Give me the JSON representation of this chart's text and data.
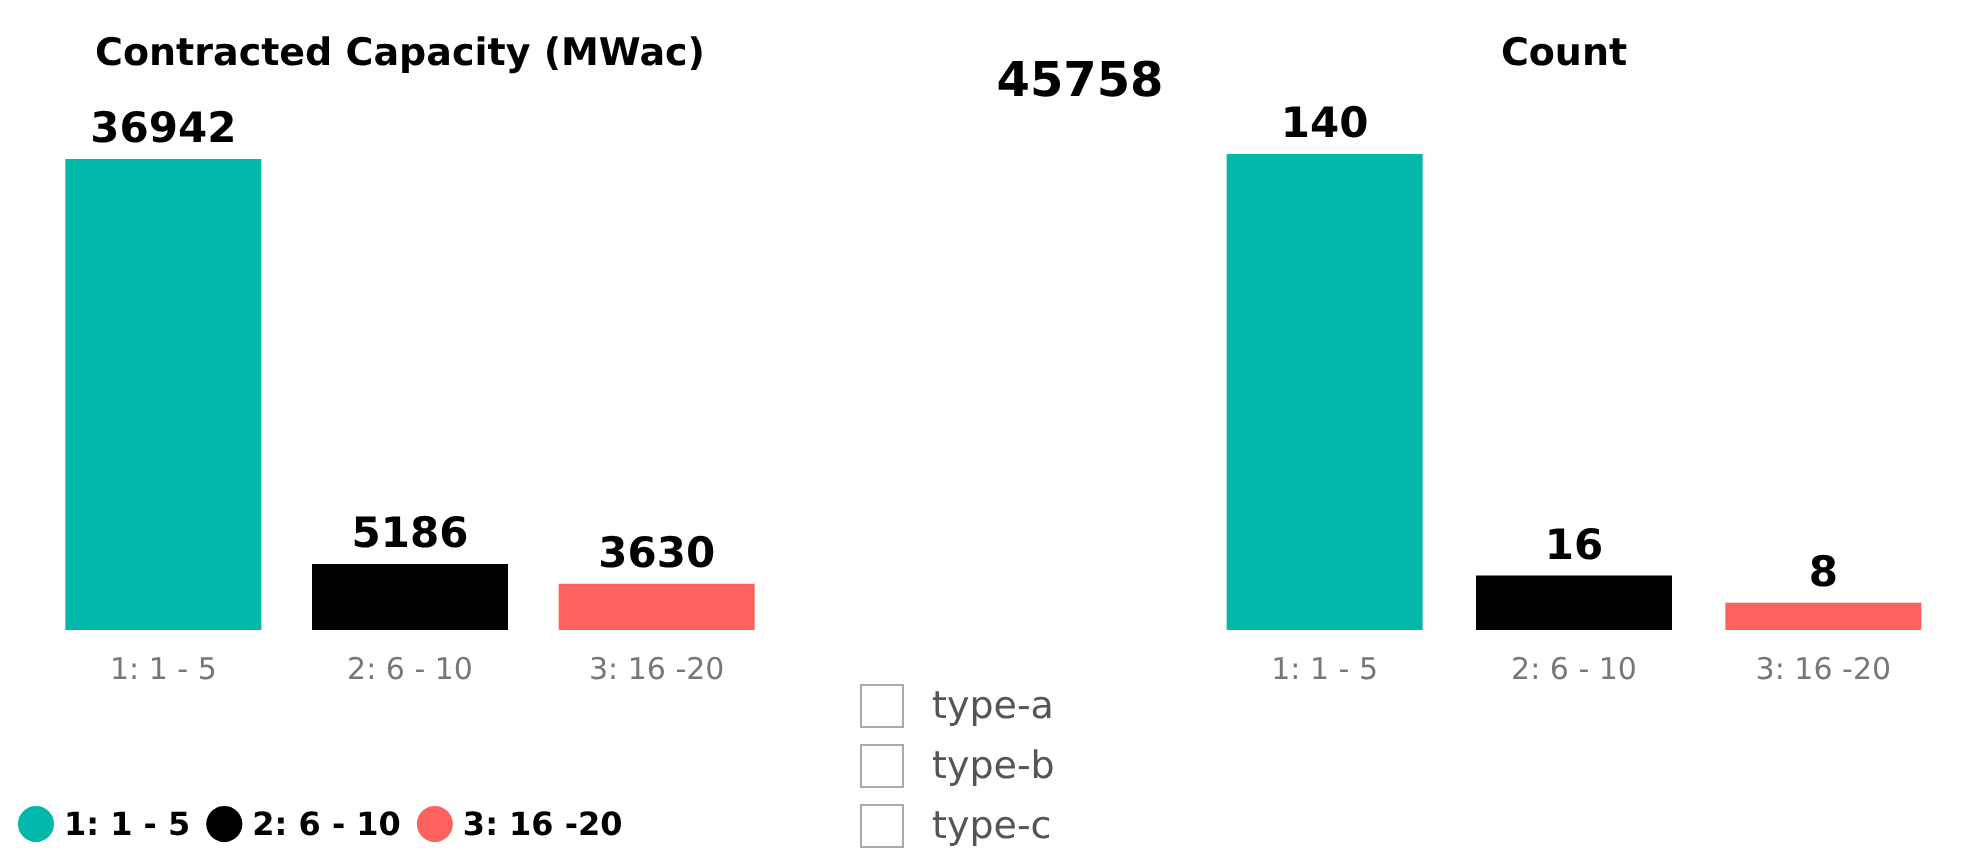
{
  "chart_data": [
    {
      "type": "bar",
      "title": "Contracted Capacity (MWac)",
      "categories": [
        "1: 1 - 5",
        "2: 6 - 10",
        "3: 16 -20"
      ],
      "series": [
        {
          "name": "1: 1 - 5",
          "color": "#01b8aa",
          "values": [
            36942,
            null,
            null
          ]
        },
        {
          "name": "2: 6 - 10",
          "color": "#000000",
          "values": [
            null,
            5186,
            null
          ]
        },
        {
          "name": "3: 16 -20",
          "color": "#fd625e",
          "values": [
            null,
            null,
            3630
          ]
        }
      ],
      "data_labels": true,
      "legend": "bottom left",
      "grid": false
    },
    {
      "type": "other",
      "annotations": [
        "45758"
      ]
    },
    {
      "type": "other",
      "annotations": [
        "type-a",
        "type-b",
        "type-c"
      ]
    },
    {
      "type": "bar",
      "title": "Count",
      "categories": [
        "1: 1 - 5",
        "2: 6 - 10",
        "3: 16 -20"
      ],
      "series": [
        {
          "color": "#01b8aa",
          "values": [
            140,
            null,
            null
          ]
        },
        {
          "color": "#000000",
          "values": [
            null,
            16,
            null
          ]
        },
        {
          "color": "#fd625e",
          "values": [
            null,
            null,
            8
          ]
        }
      ],
      "data_labels": true,
      "grid": false
    }
  ]
}
